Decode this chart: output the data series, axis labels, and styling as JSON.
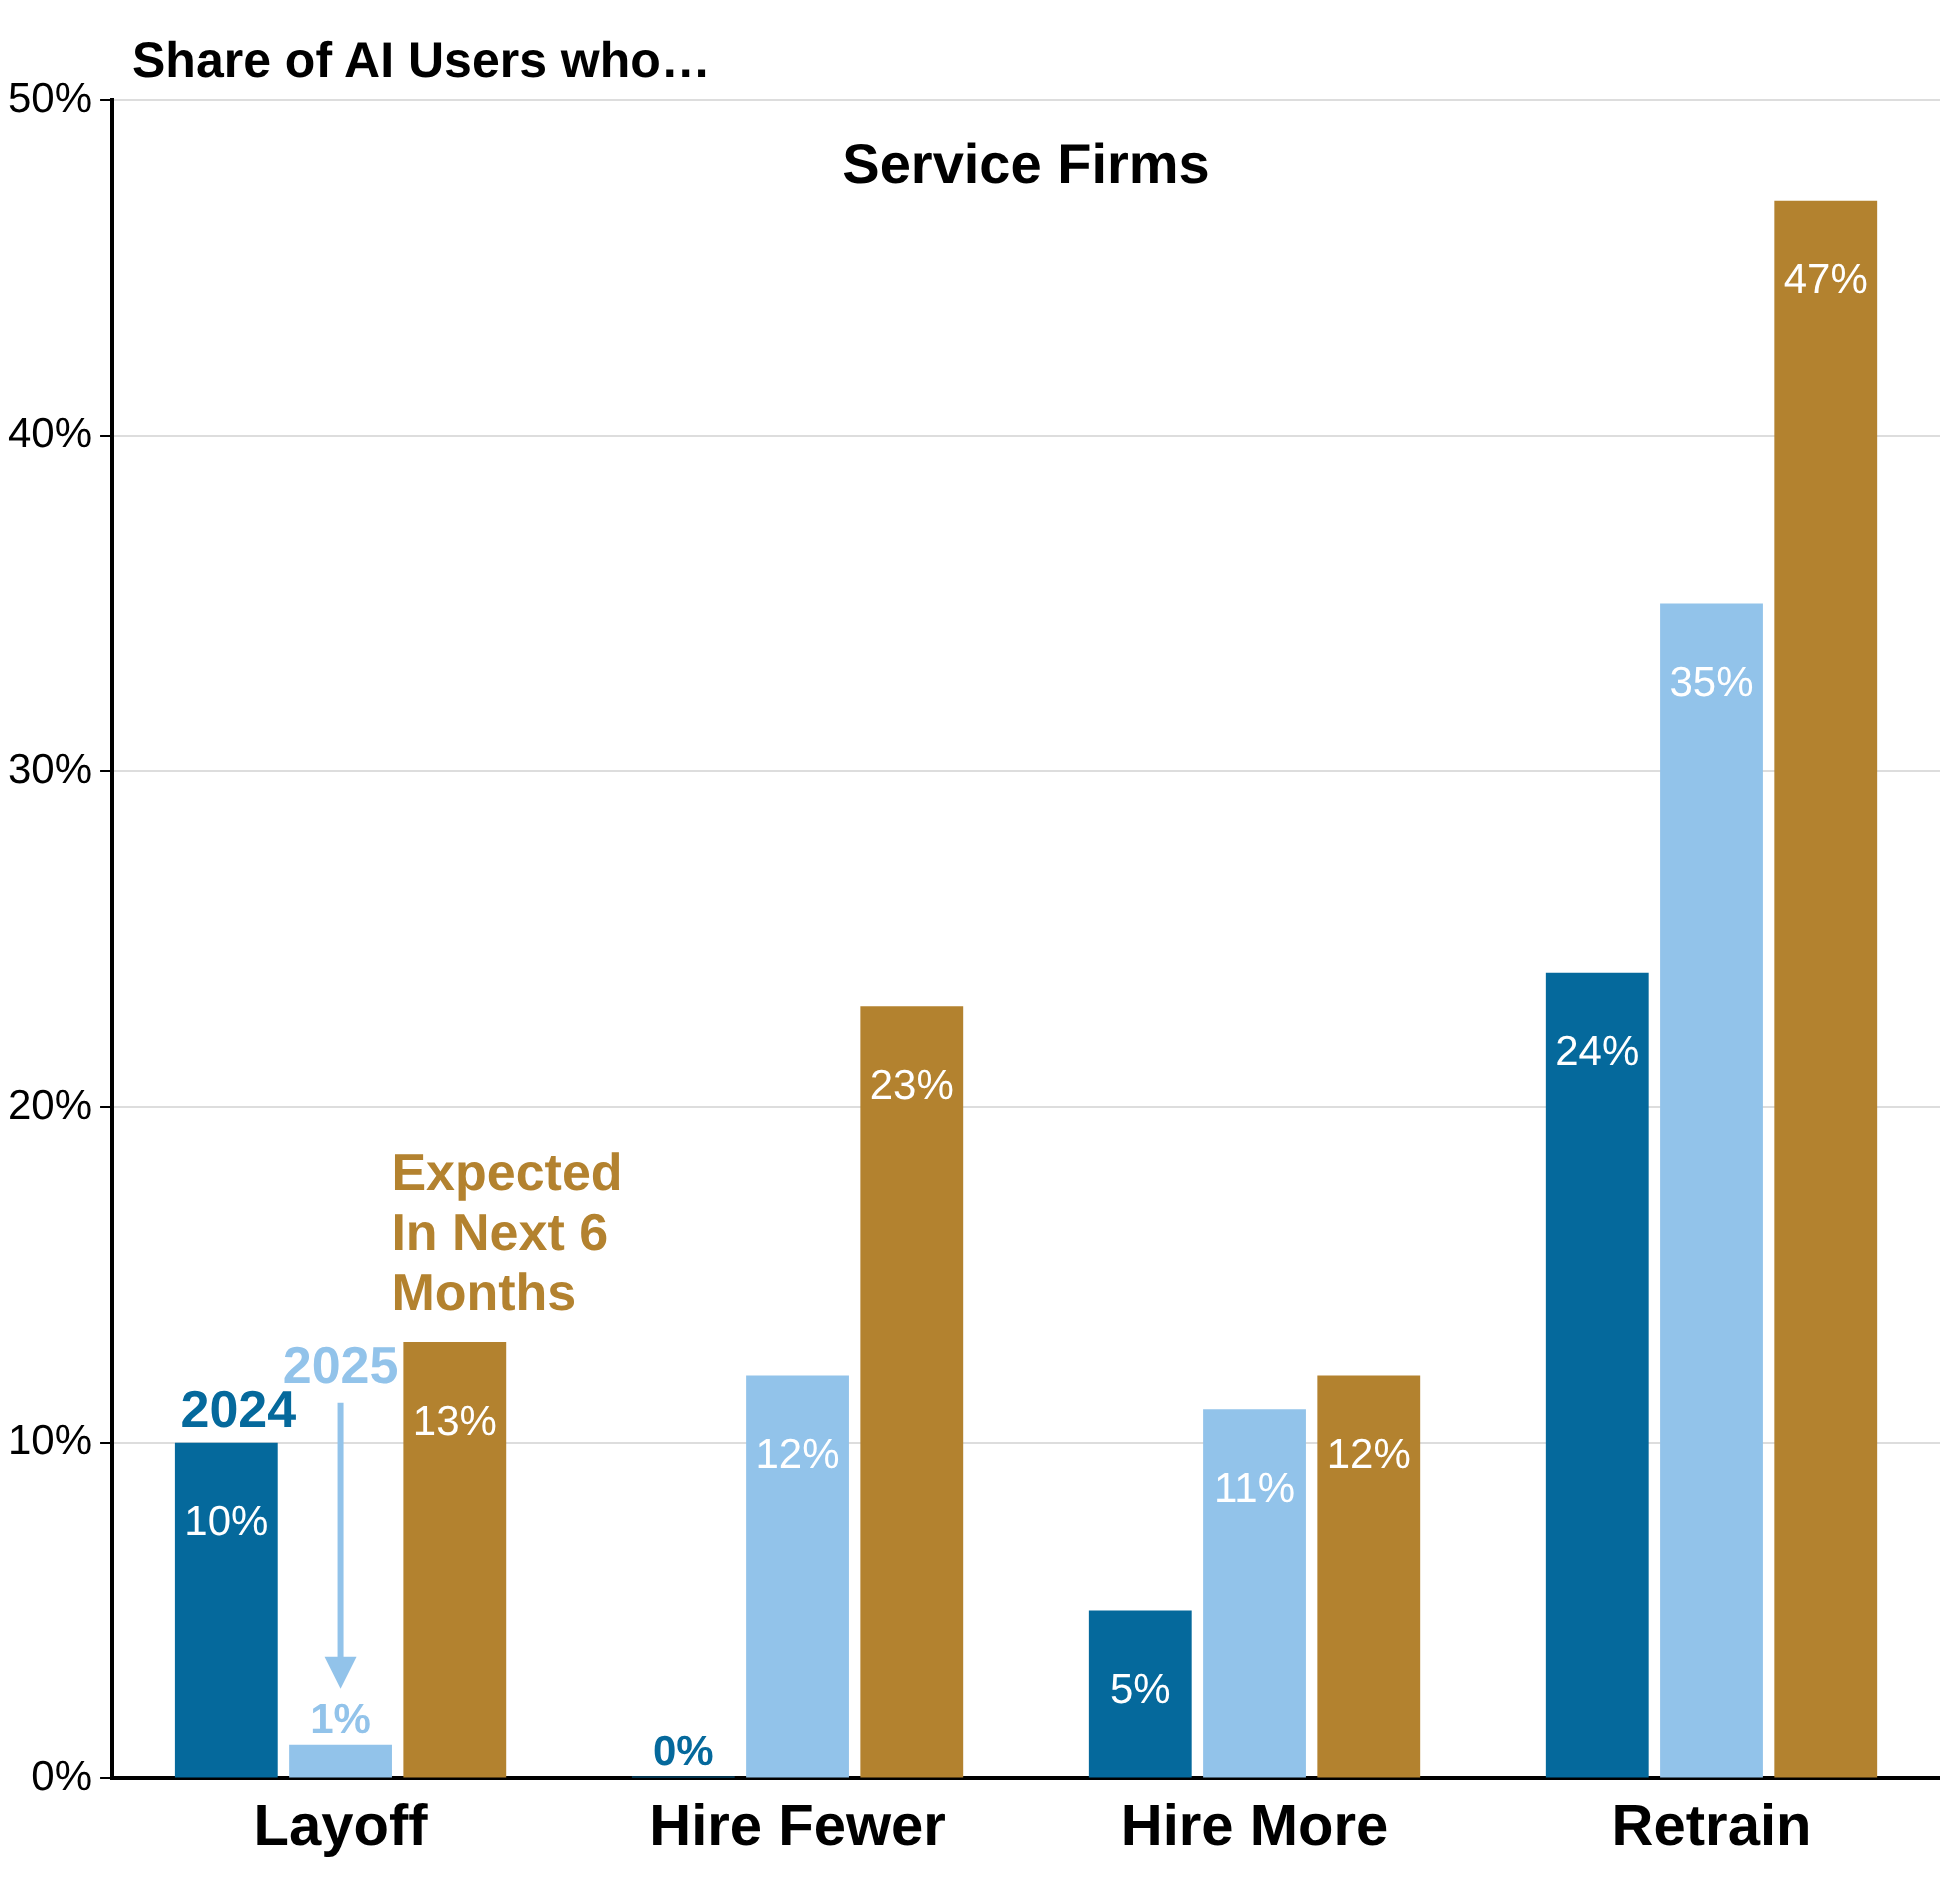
{
  "chart_data": {
    "type": "bar",
    "title": "Service Firms",
    "ylabel": "Share of AI Users who…",
    "categories": [
      "Layoff",
      "Hire Fewer",
      "Hire More",
      "Retrain"
    ],
    "series": [
      {
        "name": "2024",
        "color": "#05699c",
        "values": [
          10,
          0,
          5,
          24
        ],
        "value_labels": [
          "10%",
          "0%",
          "5%",
          "24%"
        ]
      },
      {
        "name": "2025",
        "color": "#92c3ea",
        "values": [
          1,
          12,
          11,
          35
        ],
        "value_labels": [
          "1%",
          "12%",
          "11%",
          "35%"
        ]
      },
      {
        "name": "Expected In Next 6 Months",
        "color": "#b3822f",
        "values": [
          13,
          23,
          12,
          47
        ],
        "value_labels": [
          "13%",
          "23%",
          "12%",
          "47%"
        ]
      }
    ],
    "ylim": [
      0,
      50
    ],
    "yticks": [
      {
        "value": 0,
        "label": "0%"
      },
      {
        "value": 10,
        "label": "10%"
      },
      {
        "value": 20,
        "label": "20%"
      },
      {
        "value": 30,
        "label": "30%"
      },
      {
        "value": 40,
        "label": "40%"
      },
      {
        "value": 50,
        "label": "50%"
      }
    ],
    "grid": "y",
    "legend": false
  }
}
